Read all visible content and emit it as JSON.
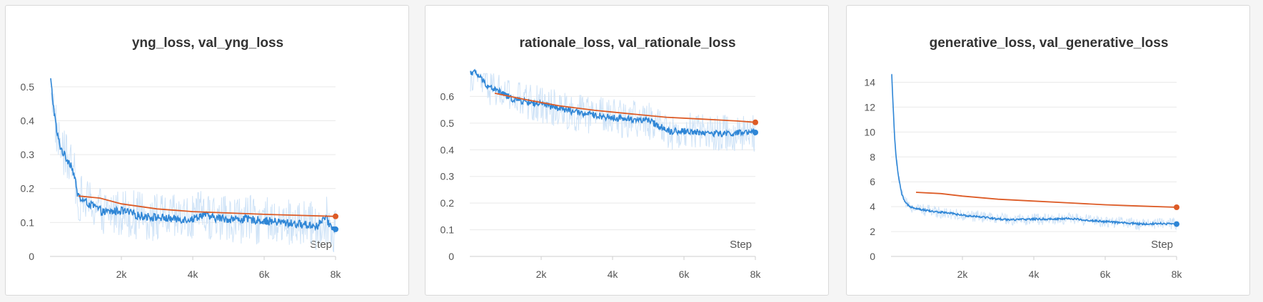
{
  "colors": {
    "train": "#2f86d6",
    "train_raw": "#cfe3f7",
    "val": "#dd5b26"
  },
  "chart_data": [
    {
      "type": "line",
      "title": "yng_loss, val_yng_loss",
      "xlabel": "Step",
      "xlim": [
        0,
        8000
      ],
      "ylim": [
        0,
        0.55
      ],
      "x_ticks": [
        2000,
        4000,
        6000,
        8000
      ],
      "x_tick_labels": [
        "2k",
        "4k",
        "6k",
        "8k"
      ],
      "y_ticks": [
        0,
        0.1,
        0.2,
        0.3,
        0.4,
        0.5
      ],
      "y_tick_labels": [
        "0",
        "0.1",
        "0.2",
        "0.3",
        "0.4",
        "0.5"
      ],
      "grid": true,
      "series": [
        {
          "role": "train",
          "points": [
            [
              20,
              0.52
            ],
            [
              100,
              0.44
            ],
            [
              200,
              0.36
            ],
            [
              300,
              0.32
            ],
            [
              450,
              0.29
            ],
            [
              600,
              0.27
            ],
            [
              700,
              0.23
            ],
            [
              750,
              0.19
            ],
            [
              850,
              0.17
            ],
            [
              1000,
              0.16
            ],
            [
              1200,
              0.15
            ],
            [
              1500,
              0.13
            ],
            [
              2000,
              0.135
            ],
            [
              2500,
              0.12
            ],
            [
              3000,
              0.115
            ],
            [
              3500,
              0.11
            ],
            [
              4000,
              0.11
            ],
            [
              4300,
              0.125
            ],
            [
              4500,
              0.115
            ],
            [
              5000,
              0.11
            ],
            [
              5500,
              0.11
            ],
            [
              6000,
              0.105
            ],
            [
              6500,
              0.1
            ],
            [
              7000,
              0.095
            ],
            [
              7500,
              0.09
            ],
            [
              7700,
              0.115
            ],
            [
              7900,
              0.085
            ],
            [
              8000,
              0.08
            ]
          ],
          "noise": 0.012
        },
        {
          "role": "val",
          "points": [
            [
              800,
              0.178
            ],
            [
              1400,
              0.172
            ],
            [
              2000,
              0.155
            ],
            [
              3000,
              0.14
            ],
            [
              4000,
              0.132
            ],
            [
              5000,
              0.128
            ],
            [
              6000,
              0.124
            ],
            [
              7000,
              0.121
            ],
            [
              8000,
              0.118
            ]
          ],
          "noise": 0
        }
      ]
    },
    {
      "type": "line",
      "title": "rationale_loss, val_rationale_loss",
      "xlabel": "Step",
      "xlim": [
        0,
        8000
      ],
      "ylim": [
        0,
        0.7
      ],
      "x_ticks": [
        2000,
        4000,
        6000,
        8000
      ],
      "x_tick_labels": [
        "2k",
        "4k",
        "6k",
        "8k"
      ],
      "y_ticks": [
        0,
        0.1,
        0.2,
        0.3,
        0.4,
        0.5,
        0.6
      ],
      "y_tick_labels": [
        "0",
        "0.1",
        "0.2",
        "0.3",
        "0.4",
        "0.5",
        "0.6"
      ],
      "grid": true,
      "series": [
        {
          "role": "train",
          "points": [
            [
              20,
              0.69
            ],
            [
              150,
              0.69
            ],
            [
              300,
              0.67
            ],
            [
              500,
              0.64
            ],
            [
              800,
              0.62
            ],
            [
              1200,
              0.59
            ],
            [
              2000,
              0.57
            ],
            [
              3000,
              0.54
            ],
            [
              4000,
              0.52
            ],
            [
              5000,
              0.51
            ],
            [
              5600,
              0.47
            ],
            [
              6000,
              0.47
            ],
            [
              7000,
              0.46
            ],
            [
              8000,
              0.465
            ]
          ],
          "noise": 0.012
        },
        {
          "role": "val",
          "points": [
            [
              700,
              0.612
            ],
            [
              1500,
              0.59
            ],
            [
              2500,
              0.565
            ],
            [
              3500,
              0.548
            ],
            [
              4500,
              0.535
            ],
            [
              5500,
              0.522
            ],
            [
              6500,
              0.515
            ],
            [
              7500,
              0.508
            ],
            [
              8000,
              0.503
            ]
          ],
          "noise": 0
        }
      ]
    },
    {
      "type": "line",
      "title": "generative_loss, val_generative_loss",
      "xlabel": "Step",
      "xlim": [
        0,
        8000
      ],
      "ylim": [
        0,
        15
      ],
      "x_ticks": [
        2000,
        4000,
        6000,
        8000
      ],
      "x_tick_labels": [
        "2k",
        "4k",
        "6k",
        "8k"
      ],
      "y_ticks": [
        0,
        2,
        4,
        6,
        8,
        10,
        12,
        14
      ],
      "y_tick_labels": [
        "0",
        "2",
        "4",
        "6",
        "8",
        "10",
        "12",
        "14"
      ],
      "grid": true,
      "series": [
        {
          "role": "train",
          "points": [
            [
              20,
              14.6
            ],
            [
              60,
              12.0
            ],
            [
              100,
              9.5
            ],
            [
              160,
              7.5
            ],
            [
              220,
              6.2
            ],
            [
              300,
              5.0
            ],
            [
              400,
              4.3
            ],
            [
              550,
              4.0
            ],
            [
              800,
              3.8
            ],
            [
              1200,
              3.6
            ],
            [
              1600,
              3.5
            ],
            [
              2000,
              3.3
            ],
            [
              2500,
              3.2
            ],
            [
              3000,
              3.0
            ],
            [
              3500,
              2.95
            ],
            [
              4000,
              3.0
            ],
            [
              4500,
              3.0
            ],
            [
              5000,
              3.05
            ],
            [
              5500,
              2.9
            ],
            [
              6000,
              2.8
            ],
            [
              6500,
              2.7
            ],
            [
              7000,
              2.6
            ],
            [
              7500,
              2.65
            ],
            [
              8000,
              2.6
            ]
          ],
          "noise": 0.08
        },
        {
          "role": "val",
          "points": [
            [
              700,
              5.15
            ],
            [
              1400,
              5.05
            ],
            [
              2000,
              4.85
            ],
            [
              3000,
              4.6
            ],
            [
              4000,
              4.45
            ],
            [
              5000,
              4.3
            ],
            [
              6000,
              4.15
            ],
            [
              7000,
              4.05
            ],
            [
              8000,
              3.95
            ]
          ],
          "noise": 0
        }
      ]
    }
  ]
}
